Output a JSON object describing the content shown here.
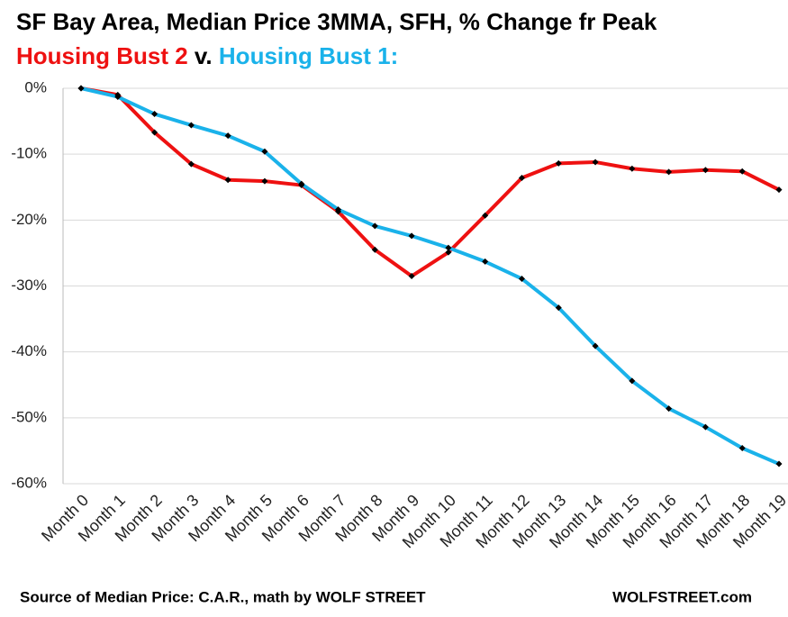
{
  "chart_data": {
    "type": "line",
    "title": "SF Bay Area, Median Price 3MMA, SFH, % Change fr Peak",
    "subtitle_joiner": "v.",
    "categories": [
      "Month 0",
      "Month 1",
      "Month 2",
      "Month 3",
      "Month 4",
      "Month 5",
      "Month 6",
      "Month 7",
      "Month 8",
      "Month 9",
      "Month 10",
      "Month 11",
      "Month 12",
      "Month 13",
      "Month 14",
      "Month 15",
      "Month 16",
      "Month 17",
      "Month 18",
      "Month 19"
    ],
    "series": [
      {
        "name": "Housing Bust 2",
        "color": "#ee1111",
        "values": [
          0,
          -1.0,
          -6.7,
          -11.5,
          -13.9,
          -14.1,
          -14.7,
          -18.7,
          -24.5,
          -28.5,
          -24.9,
          -19.3,
          -13.6,
          -11.4,
          -11.2,
          -12.2,
          -12.7,
          -12.4,
          -12.6,
          -15.4
        ]
      },
      {
        "name": "Housing Bust 1:",
        "color": "#1ab2ea",
        "values": [
          0,
          -1.3,
          -3.9,
          -5.6,
          -7.2,
          -9.6,
          -14.5,
          -18.4,
          -20.9,
          -22.4,
          -24.2,
          -26.3,
          -28.9,
          -33.3,
          -39.1,
          -44.4,
          -48.6,
          -51.4,
          -54.6,
          -57.0
        ]
      }
    ],
    "marker_color": "#000000",
    "ylim": [
      -60,
      0
    ],
    "yticks": [
      {
        "value": 0,
        "label": "0%"
      },
      {
        "value": -10,
        "label": "-10%"
      },
      {
        "value": -20,
        "label": "-20%"
      },
      {
        "value": -30,
        "label": "-30%"
      },
      {
        "value": -40,
        "label": "-40%"
      },
      {
        "value": -50,
        "label": "-50%"
      },
      {
        "value": -60,
        "label": "-60%"
      }
    ],
    "grid": true,
    "source": "Source of Median Price: C.A.R., math by WOLF STREET",
    "credit": "WOLFSTREET.com"
  }
}
